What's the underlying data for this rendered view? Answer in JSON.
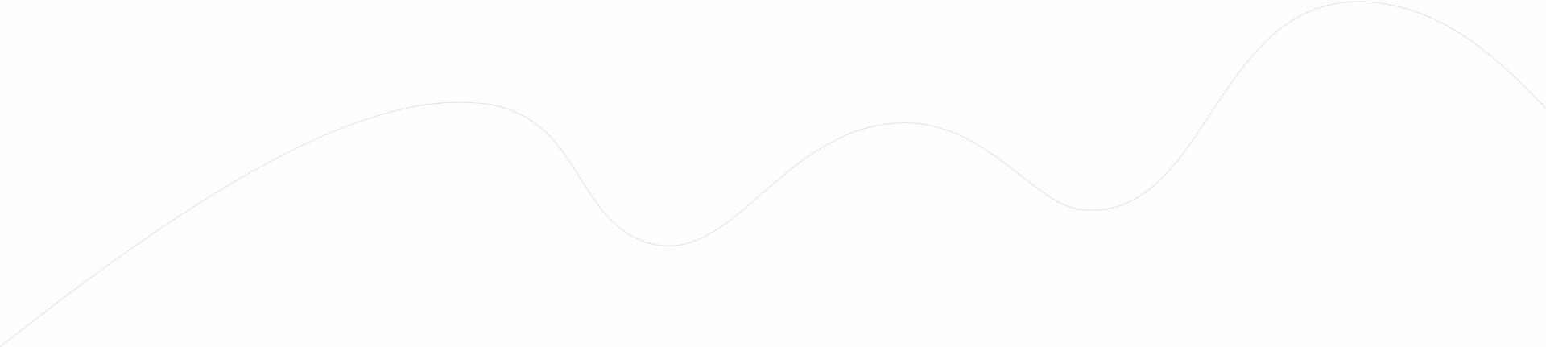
{
  "canvas": {
    "background": "#fefefe"
  },
  "wave": {
    "stroke": "#e6e6e6"
  }
}
